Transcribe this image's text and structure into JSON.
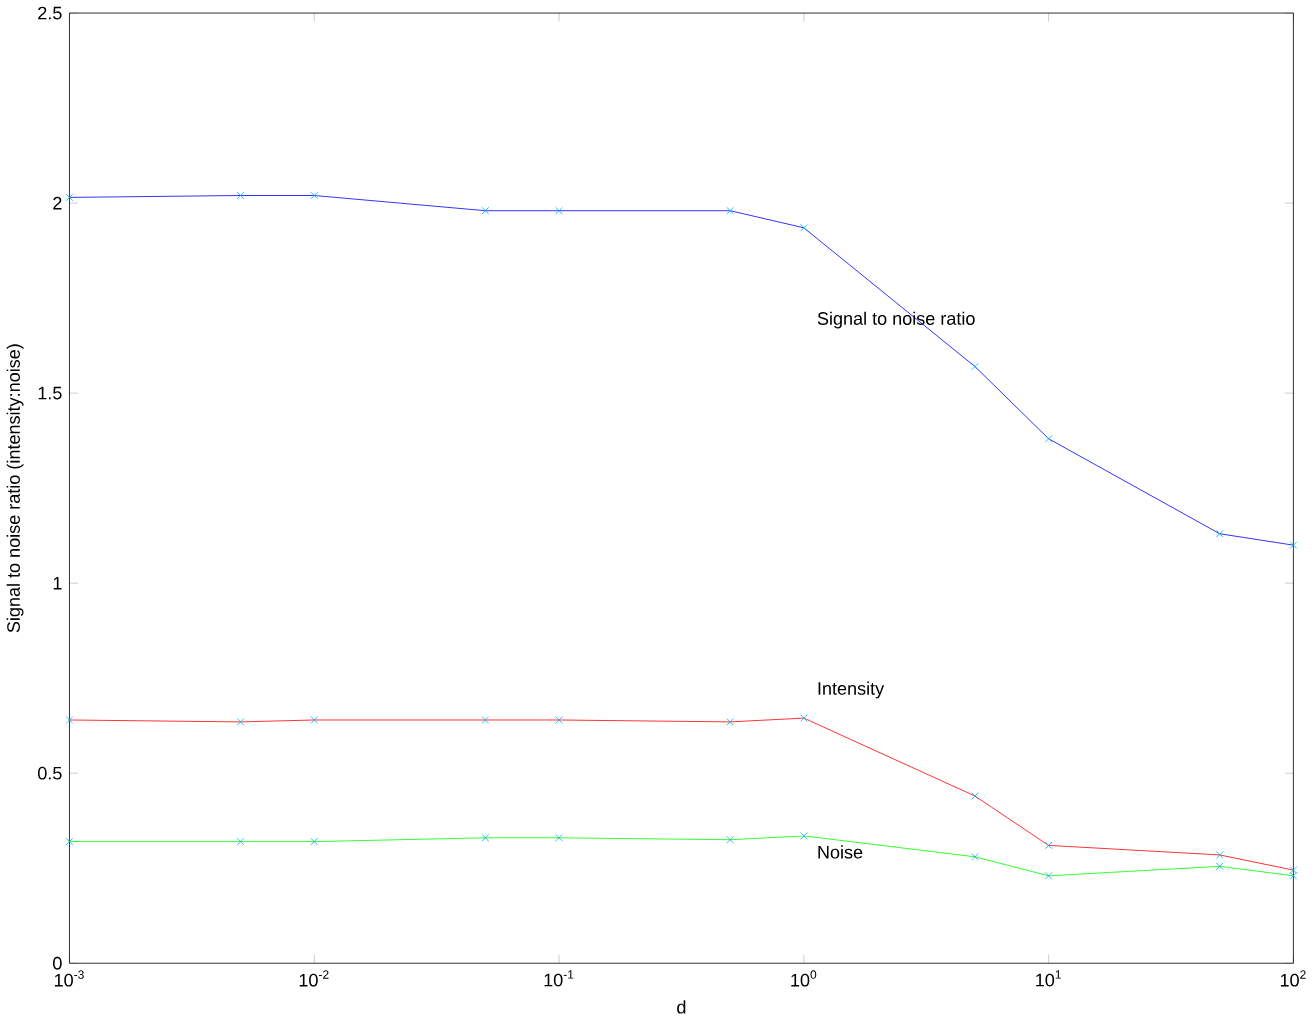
{
  "chart_data": {
    "type": "line",
    "xlabel": "d",
    "ylabel": "Signal to noise ratio (intensity:noise)",
    "log": "x",
    "marker": "cross",
    "line_style": "solid",
    "grid": false,
    "legend": false,
    "x": [
      0.001,
      0.005,
      0.01,
      0.05,
      0.1,
      0.5,
      1,
      5,
      10,
      50,
      100
    ],
    "xlim": [
      0.001,
      100
    ],
    "ylim": [
      0,
      2.5
    ],
    "xticks": [
      {
        "value": 0.001,
        "label": "10$^{-3}$"
      },
      {
        "value": 0.01,
        "label": "10$^{-2}$"
      },
      {
        "value": 0.1,
        "label": "10$^{-1}$"
      },
      {
        "value": 1,
        "label": "10$^{0}$"
      },
      {
        "value": 10,
        "label": "10$^{1}$"
      },
      {
        "value": 100,
        "label": "10$^{2}$"
      }
    ],
    "yticks": [
      0,
      0.5,
      1,
      1.5,
      2,
      2.5
    ],
    "series": [
      {
        "name": "Signal to noise ratio",
        "color": "#0000ff",
        "values": [
          2.015,
          2.02,
          2.02,
          1.98,
          1.98,
          1.98,
          1.935,
          1.57,
          1.38,
          1.13,
          1.1
        ]
      },
      {
        "name": "Intensity",
        "color": "#ff0000",
        "values": [
          0.64,
          0.635,
          0.64,
          0.64,
          0.64,
          0.635,
          0.645,
          0.44,
          0.31,
          0.285,
          0.245
        ]
      },
      {
        "name": "Noise",
        "color": "#00ff00",
        "values": [
          0.32,
          0.32,
          0.32,
          0.33,
          0.33,
          0.325,
          0.335,
          0.28,
          0.23,
          0.255,
          0.23
        ]
      }
    ]
  }
}
